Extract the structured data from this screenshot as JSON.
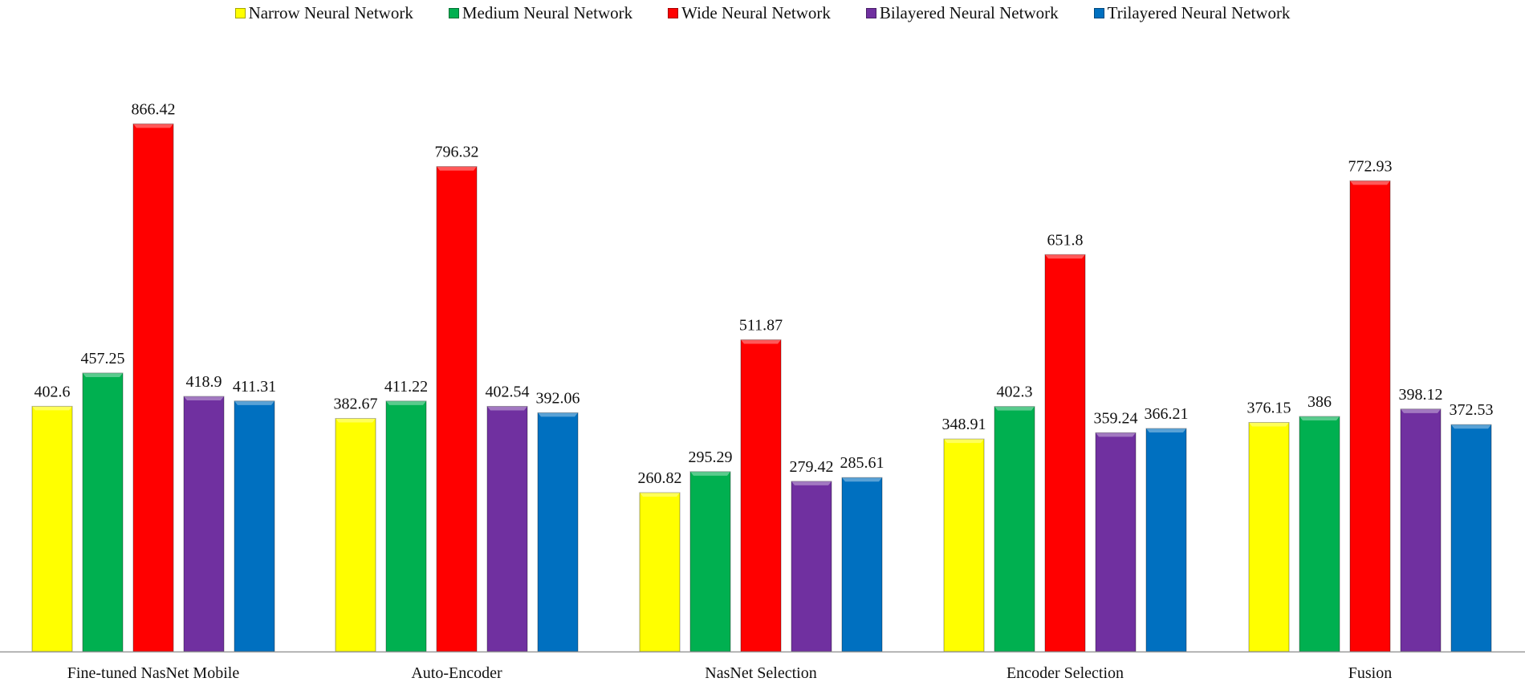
{
  "chart_data": {
    "type": "bar",
    "title": "",
    "xlabel": "",
    "ylabel": "",
    "ylim": [
      0,
      950
    ],
    "grid": false,
    "legend_position": "top-center",
    "categories": [
      "Fine-tuned NasNet Mobile",
      "Auto-Encoder",
      "NasNet Selection",
      "Encoder Selection",
      "Fusion"
    ],
    "series": [
      {
        "name": "Narrow Neural Network",
        "color": "#ffff00",
        "values": [
          402.6,
          382.67,
          260.82,
          348.91,
          376.15
        ]
      },
      {
        "name": "Medium Neural Network",
        "color": "#00b050",
        "values": [
          457.25,
          411.22,
          295.29,
          402.3,
          386
        ]
      },
      {
        "name": "Wide Neural Network",
        "color": "#ff0000",
        "values": [
          866.42,
          796.32,
          511.87,
          651.8,
          772.93
        ]
      },
      {
        "name": "Bilayered Neural Network",
        "color": "#7030a0",
        "values": [
          418.9,
          402.54,
          279.42,
          359.24,
          398.12
        ]
      },
      {
        "name": "Trilayered Neural Network",
        "color": "#0070c0",
        "values": [
          411.31,
          392.06,
          285.61,
          366.21,
          372.53
        ]
      }
    ]
  }
}
